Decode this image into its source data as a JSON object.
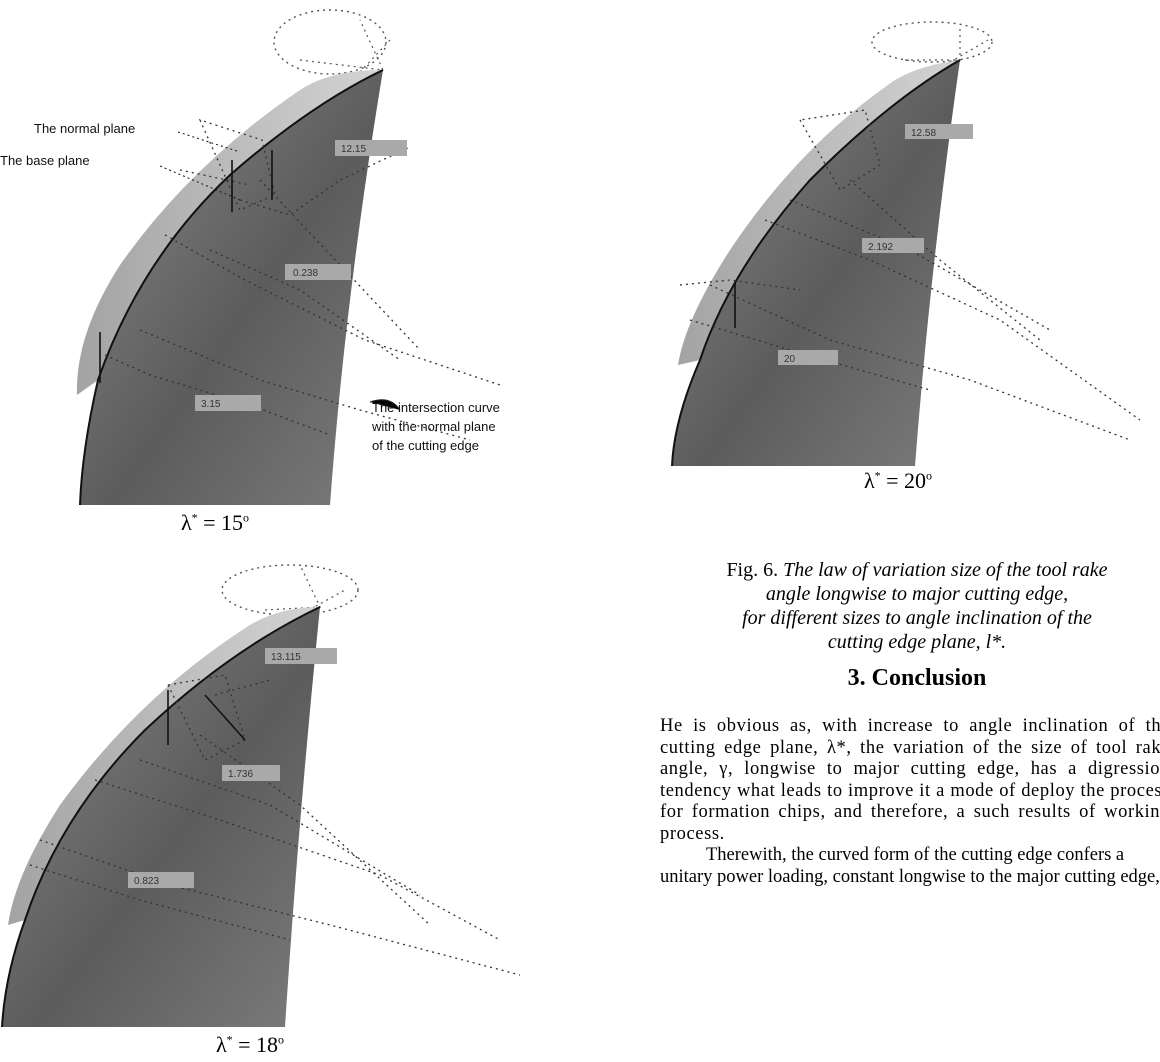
{
  "figures": [
    {
      "id": "panel-15",
      "lambda_symbol": "λ",
      "lambda_value": "15",
      "annotations": {
        "normal_plane": "The normal plane",
        "base_plane": "The base plane",
        "intersection_line1": "The intersection curve",
        "intersection_line2": "with the normal plane",
        "intersection_line3": "of the cutting edge"
      },
      "dimension_values": [
        "12.15",
        "0.238",
        "3.15"
      ]
    },
    {
      "id": "panel-20",
      "lambda_symbol": "λ",
      "lambda_value": "20",
      "dimension_values": [
        "12.58",
        "2.192",
        "20"
      ]
    },
    {
      "id": "panel-18",
      "lambda_symbol": "λ",
      "lambda_value": "18",
      "dimension_values": [
        "13.115",
        "1.736",
        "0.823"
      ]
    }
  ],
  "caption": {
    "prefix": "Fig. 6. ",
    "line1": "The law of variation size of the tool rake",
    "line2": "angle longwise to major cutting edge,",
    "line3": "for different sizes to angle inclination of the",
    "line4": "cutting edge plane, l*."
  },
  "section": {
    "title": "3. Conclusion"
  },
  "body": {
    "paragraph1": "He is obvious as, with increase to angle inclination of the cutting edge plane, λ*, the variation of the size of tool rake angle, γ, longwise to major cutting edge, has a digression tendency what leads to improve it a mode of deploy the process for formation chips, and therefore, a such results of working process.",
    "paragraph2": "Therewith, the curved form of the cutting edge confers a unitary power loading, constant longwise to the major cutting edge,"
  }
}
